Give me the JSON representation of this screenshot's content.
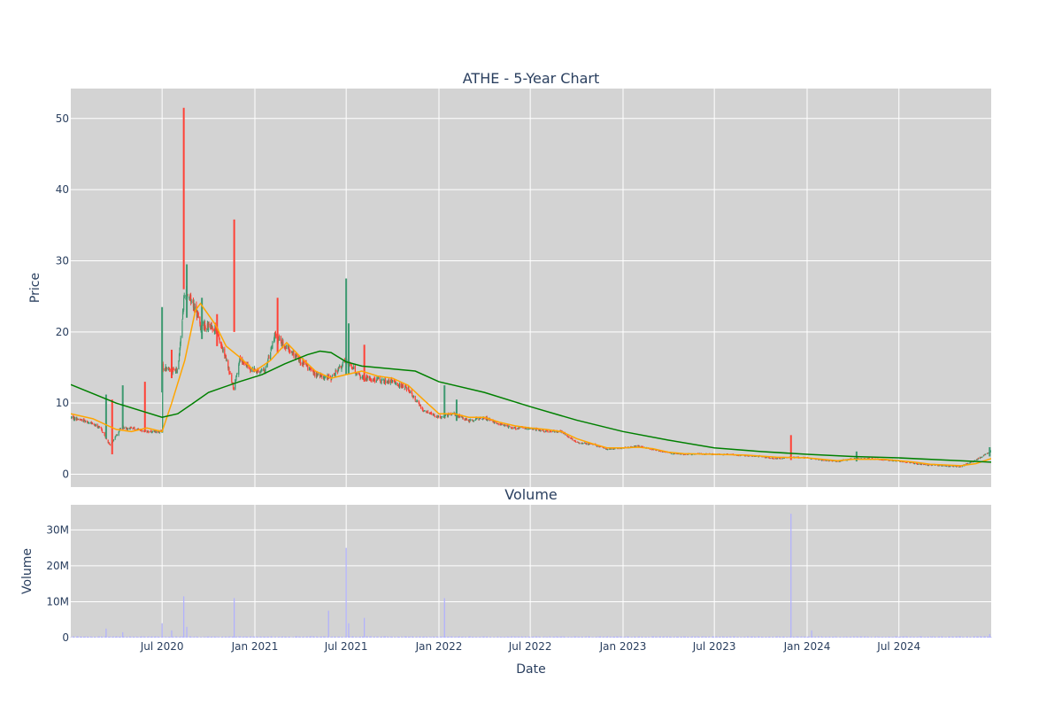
{
  "chart_data": [
    {
      "type": "candlestick",
      "title": "ATHE - 5-Year Chart",
      "ylabel": "Price",
      "xlim": [
        "2020-01-02",
        "2024-12-31"
      ],
      "ylim": [
        -1.8,
        54.2
      ],
      "yticks": [
        0,
        10,
        20,
        30,
        40,
        50
      ],
      "ytick_labels": [
        "0",
        "10",
        "20",
        "30",
        "40",
        "50"
      ],
      "grid": true,
      "colors": {
        "increasing": "#3d9970",
        "decreasing": "#ff4136",
        "ma_short": "#ffa500",
        "ma_long": "#008000",
        "plot_bg": "#d3d3d3",
        "grid": "#ffffff"
      },
      "price_path": [
        [
          "2020-01-02",
          8.0
        ],
        [
          "2020-02-01",
          7.5
        ],
        [
          "2020-03-01",
          6.5
        ],
        [
          "2020-03-20",
          4.0
        ],
        [
          "2020-04-10",
          6.5
        ],
        [
          "2020-05-01",
          6.5
        ],
        [
          "2020-06-01",
          6.0
        ],
        [
          "2020-07-01",
          6.0
        ],
        [
          "2020-07-02",
          15.0
        ],
        [
          "2020-08-01",
          14.5
        ],
        [
          "2020-08-15",
          26.0
        ],
        [
          "2020-09-01",
          24.0
        ],
        [
          "2020-09-15",
          21.0
        ],
        [
          "2020-10-15",
          20.5
        ],
        [
          "2020-11-05",
          16.0
        ],
        [
          "2020-11-20",
          12.0
        ],
        [
          "2020-12-01",
          16.0
        ],
        [
          "2021-01-01",
          14.5
        ],
        [
          "2021-01-20",
          14.5
        ],
        [
          "2021-02-10",
          19.5
        ],
        [
          "2021-03-01",
          18.0
        ],
        [
          "2021-04-01",
          16.0
        ],
        [
          "2021-05-01",
          14.0
        ],
        [
          "2021-06-01",
          13.5
        ],
        [
          "2021-07-01",
          16.0
        ],
        [
          "2021-08-01",
          13.5
        ],
        [
          "2021-09-01",
          13.3
        ],
        [
          "2021-10-01",
          13.0
        ],
        [
          "2021-11-01",
          12.0
        ],
        [
          "2021-12-01",
          9.0
        ],
        [
          "2022-01-01",
          8.0
        ],
        [
          "2022-02-01",
          8.5
        ],
        [
          "2022-03-01",
          7.5
        ],
        [
          "2022-04-01",
          8.0
        ],
        [
          "2022-05-01",
          7.0
        ],
        [
          "2022-06-01",
          6.5
        ],
        [
          "2022-07-01",
          6.5
        ],
        [
          "2022-08-01",
          6.0
        ],
        [
          "2022-09-01",
          6.0
        ],
        [
          "2022-10-01",
          4.5
        ],
        [
          "2022-11-01",
          4.2
        ],
        [
          "2022-12-01",
          3.5
        ],
        [
          "2023-01-01",
          3.7
        ],
        [
          "2023-02-01",
          4.0
        ],
        [
          "2023-03-01",
          3.5
        ],
        [
          "2023-04-01",
          3.0
        ],
        [
          "2023-05-01",
          2.8
        ],
        [
          "2023-06-01",
          2.9
        ],
        [
          "2023-07-01",
          2.8
        ],
        [
          "2023-08-01",
          2.8
        ],
        [
          "2023-09-01",
          2.6
        ],
        [
          "2023-10-01",
          2.5
        ],
        [
          "2023-11-01",
          2.2
        ],
        [
          "2023-12-01",
          2.4
        ],
        [
          "2024-01-01",
          2.3
        ],
        [
          "2024-02-01",
          2.0
        ],
        [
          "2024-03-01",
          1.8
        ],
        [
          "2024-04-01",
          2.2
        ],
        [
          "2024-05-01",
          2.2
        ],
        [
          "2024-06-01",
          2.0
        ],
        [
          "2024-07-01",
          1.9
        ],
        [
          "2024-08-01",
          1.5
        ],
        [
          "2024-09-01",
          1.3
        ],
        [
          "2024-10-01",
          1.2
        ],
        [
          "2024-11-01",
          1.1
        ],
        [
          "2024-12-01",
          2.0
        ],
        [
          "2024-12-31",
          3.3
        ]
      ],
      "spikes": [
        {
          "date": "2020-03-12",
          "high": 11.2,
          "low": 5.0,
          "dir": "up"
        },
        {
          "date": "2020-03-24",
          "high": 10.5,
          "low": 2.8,
          "dir": "down"
        },
        {
          "date": "2020-04-14",
          "high": 12.5,
          "low": 6.5,
          "dir": "up"
        },
        {
          "date": "2020-05-28",
          "high": 13.0,
          "low": 6.0,
          "dir": "down"
        },
        {
          "date": "2020-07-01",
          "high": 23.5,
          "low": 11.5,
          "dir": "up"
        },
        {
          "date": "2020-07-20",
          "high": 17.5,
          "low": 13.5,
          "dir": "down"
        },
        {
          "date": "2020-08-13",
          "high": 51.5,
          "low": 26.0,
          "dir": "down"
        },
        {
          "date": "2020-08-19",
          "high": 29.5,
          "low": 22.0,
          "dir": "up"
        },
        {
          "date": "2020-09-18",
          "high": 24.8,
          "low": 19.0,
          "dir": "up"
        },
        {
          "date": "2020-10-18",
          "high": 22.5,
          "low": 18.0,
          "dir": "down"
        },
        {
          "date": "2020-11-21",
          "high": 35.8,
          "low": 20.0,
          "dir": "down"
        },
        {
          "date": "2021-02-15",
          "high": 24.8,
          "low": 17.0,
          "dir": "down"
        },
        {
          "date": "2021-07-01",
          "high": 27.5,
          "low": 14.0,
          "dir": "up"
        },
        {
          "date": "2021-07-06",
          "high": 21.2,
          "low": 14.0,
          "dir": "up"
        },
        {
          "date": "2021-08-06",
          "high": 18.2,
          "low": 13.0,
          "dir": "down"
        },
        {
          "date": "2022-01-12",
          "high": 12.5,
          "low": 8.0,
          "dir": "up"
        },
        {
          "date": "2022-02-05",
          "high": 10.5,
          "low": 7.5,
          "dir": "up"
        },
        {
          "date": "2023-11-30",
          "high": 5.5,
          "low": 2.0,
          "dir": "down"
        },
        {
          "date": "2024-04-08",
          "high": 3.2,
          "low": 1.8,
          "dir": "up"
        },
        {
          "date": "2024-12-28",
          "high": 3.8,
          "low": 2.5,
          "dir": "up"
        }
      ],
      "ma_short": [
        [
          "2020-01-02",
          8.5
        ],
        [
          "2020-02-15",
          7.8
        ],
        [
          "2020-04-01",
          6.3
        ],
        [
          "2020-05-01",
          6.0
        ],
        [
          "2020-06-01",
          6.5
        ],
        [
          "2020-07-01",
          6.0
        ],
        [
          "2020-07-20",
          10.0
        ],
        [
          "2020-08-15",
          16.0
        ],
        [
          "2020-09-05",
          23.0
        ],
        [
          "2020-09-15",
          24.0
        ],
        [
          "2020-10-15",
          21.0
        ],
        [
          "2020-11-05",
          18.0
        ],
        [
          "2020-12-01",
          16.5
        ],
        [
          "2021-01-01",
          14.5
        ],
        [
          "2021-02-01",
          16.0
        ],
        [
          "2021-03-05",
          18.5
        ],
        [
          "2021-04-01",
          16.5
        ],
        [
          "2021-05-01",
          14.5
        ],
        [
          "2021-06-01",
          13.5
        ],
        [
          "2021-07-01",
          14.0
        ],
        [
          "2021-08-01",
          14.5
        ],
        [
          "2021-09-01",
          13.8
        ],
        [
          "2021-10-01",
          13.5
        ],
        [
          "2021-11-01",
          12.5
        ],
        [
          "2021-12-01",
          10.5
        ],
        [
          "2022-01-01",
          8.5
        ],
        [
          "2022-02-01",
          8.5
        ],
        [
          "2022-03-01",
          8.0
        ],
        [
          "2022-04-01",
          8.0
        ],
        [
          "2022-05-01",
          7.3
        ],
        [
          "2022-06-01",
          6.8
        ],
        [
          "2022-07-01",
          6.5
        ],
        [
          "2022-08-01",
          6.3
        ],
        [
          "2022-09-01",
          6.0
        ],
        [
          "2022-10-01",
          5.0
        ],
        [
          "2022-11-01",
          4.3
        ],
        [
          "2022-12-01",
          3.7
        ],
        [
          "2023-01-01",
          3.7
        ],
        [
          "2023-02-01",
          3.8
        ],
        [
          "2023-03-01",
          3.6
        ],
        [
          "2023-04-01",
          3.1
        ],
        [
          "2023-05-01",
          2.9
        ],
        [
          "2023-07-01",
          2.8
        ],
        [
          "2023-09-01",
          2.7
        ],
        [
          "2023-11-01",
          2.4
        ],
        [
          "2024-01-01",
          2.3
        ],
        [
          "2024-03-01",
          1.9
        ],
        [
          "2024-04-01",
          2.1
        ],
        [
          "2024-06-01",
          2.1
        ],
        [
          "2024-08-01",
          1.7
        ],
        [
          "2024-09-01",
          1.4
        ],
        [
          "2024-11-01",
          1.2
        ],
        [
          "2024-12-01",
          1.5
        ],
        [
          "2024-12-31",
          2.2
        ]
      ],
      "ma_long": [
        [
          "2020-01-02",
          12.6
        ],
        [
          "2020-04-01",
          10.0
        ],
        [
          "2020-07-01",
          8.0
        ],
        [
          "2020-08-01",
          8.5
        ],
        [
          "2020-09-01",
          10.0
        ],
        [
          "2020-10-01",
          11.5
        ],
        [
          "2020-12-01",
          13.0
        ],
        [
          "2021-01-15",
          14.0
        ],
        [
          "2021-03-01",
          15.5
        ],
        [
          "2021-04-15",
          16.8
        ],
        [
          "2021-05-10",
          17.3
        ],
        [
          "2021-06-01",
          17.1
        ],
        [
          "2021-07-01",
          15.8
        ],
        [
          "2021-08-01",
          15.2
        ],
        [
          "2021-10-01",
          14.8
        ],
        [
          "2021-11-15",
          14.5
        ],
        [
          "2022-01-01",
          13.0
        ],
        [
          "2022-04-01",
          11.5
        ],
        [
          "2022-07-01",
          9.5
        ],
        [
          "2022-10-01",
          7.6
        ],
        [
          "2023-01-01",
          6.0
        ],
        [
          "2023-04-01",
          4.8
        ],
        [
          "2023-07-01",
          3.7
        ],
        [
          "2023-10-01",
          3.2
        ],
        [
          "2024-01-01",
          2.8
        ],
        [
          "2024-04-01",
          2.5
        ],
        [
          "2024-07-01",
          2.3
        ],
        [
          "2024-10-01",
          2.0
        ],
        [
          "2024-12-31",
          1.7
        ]
      ]
    },
    {
      "type": "bar",
      "title": "Volume",
      "xlabel": "Date",
      "ylabel": "Volume",
      "ylim": [
        0,
        37000000
      ],
      "yticks": [
        0,
        10000000,
        20000000,
        30000000
      ],
      "ytick_labels": [
        "0",
        "10M",
        "20M",
        "30M"
      ],
      "xticks": [
        "2020-07-01",
        "2021-01-01",
        "2021-07-01",
        "2022-01-01",
        "2022-07-01",
        "2023-01-01",
        "2023-07-01",
        "2024-01-01",
        "2024-07-01"
      ],
      "xtick_labels": [
        "Jul 2020",
        "Jan 2021",
        "Jul 2021",
        "Jan 2022",
        "Jul 2022",
        "Jan 2023",
        "Jul 2023",
        "Jan 2024",
        "Jul 2024"
      ],
      "grid": true,
      "colors": {
        "bar": "#b0b0ff",
        "plot_bg": "#d3d3d3",
        "grid": "#ffffff"
      },
      "base_volume": 200000,
      "spikes": [
        [
          "2020-03-12",
          2500000
        ],
        [
          "2020-04-14",
          1500000
        ],
        [
          "2020-07-01",
          4000000
        ],
        [
          "2020-07-20",
          2000000
        ],
        [
          "2020-08-13",
          11500000
        ],
        [
          "2020-08-19",
          3000000
        ],
        [
          "2020-11-21",
          11000000
        ],
        [
          "2021-05-27",
          7500000
        ],
        [
          "2021-07-01",
          25000000
        ],
        [
          "2021-07-06",
          4000000
        ],
        [
          "2021-08-06",
          5500000
        ],
        [
          "2022-01-12",
          11000000
        ],
        [
          "2023-11-30",
          34500000
        ],
        [
          "2024-01-10",
          2000000
        ],
        [
          "2024-12-28",
          1000000
        ]
      ]
    }
  ]
}
